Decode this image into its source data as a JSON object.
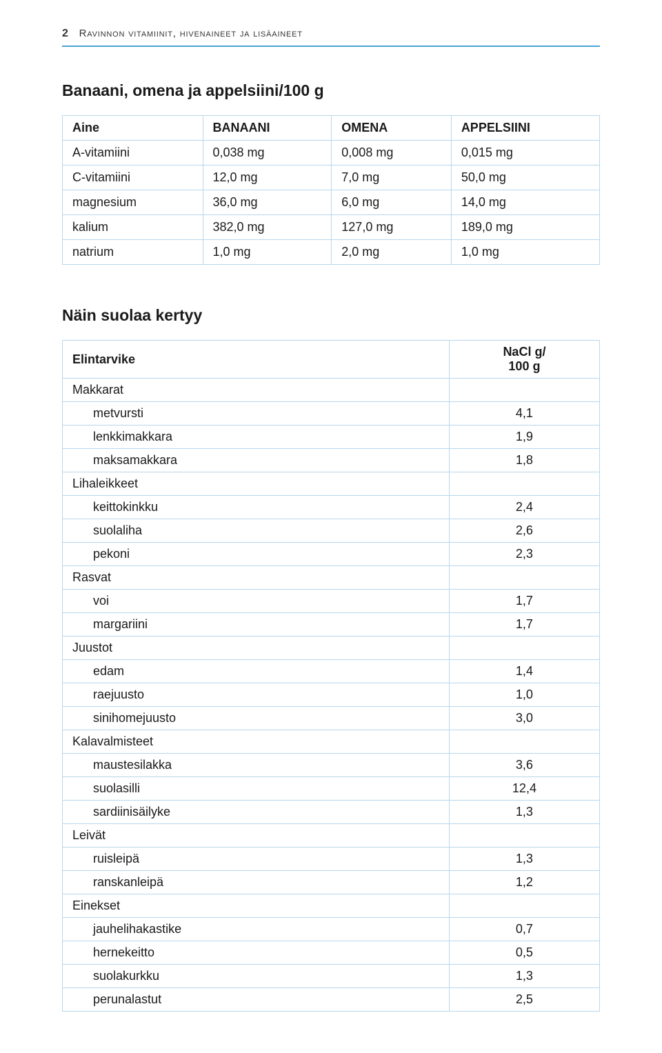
{
  "header": {
    "page_number": "2",
    "running_title": "Ravinnon vitamiinit, hivenaineet ja lisäaineet"
  },
  "colors": {
    "rule": "#4aa3d6",
    "grid": "#b7d7ec",
    "text": "#1a1a1a",
    "background": "#ffffff"
  },
  "table1": {
    "title": "Banaani, omena ja appelsiini/100 g",
    "headers": [
      "Aine",
      "BANAANI",
      "OMENA",
      "APPELSIINI"
    ],
    "rows": [
      [
        "A-vitamiini",
        "0,038 mg",
        "0,008 mg",
        "0,015 mg"
      ],
      [
        "C-vitamiini",
        "12,0 mg",
        "7,0 mg",
        "50,0 mg"
      ],
      [
        "magnesium",
        "36,0 mg",
        "6,0 mg",
        "14,0 mg"
      ],
      [
        "kalium",
        "382,0 mg",
        "127,0 mg",
        "189,0 mg"
      ],
      [
        "natrium",
        "1,0 mg",
        "2,0 mg",
        "1,0 mg"
      ]
    ]
  },
  "table2": {
    "title": "Näin suolaa kertyy",
    "headers": [
      "Elintarvike",
      "NaCl g/\n100 g"
    ],
    "groups": [
      {
        "name": "Makkarat",
        "items": [
          [
            "metvursti",
            "4,1"
          ],
          [
            "lenkkimakkara",
            "1,9"
          ],
          [
            "maksamakkara",
            "1,8"
          ]
        ]
      },
      {
        "name": "Lihaleikkeet",
        "items": [
          [
            "keittokinkku",
            "2,4"
          ],
          [
            "suolaliha",
            "2,6"
          ],
          [
            "pekoni",
            "2,3"
          ]
        ]
      },
      {
        "name": "Rasvat",
        "items": [
          [
            "voi",
            "1,7"
          ],
          [
            "margariini",
            "1,7"
          ]
        ]
      },
      {
        "name": "Juustot",
        "items": [
          [
            "edam",
            "1,4"
          ],
          [
            "raejuusto",
            "1,0"
          ],
          [
            "sinihomejuusto",
            "3,0"
          ]
        ]
      },
      {
        "name": "Kalavalmisteet",
        "items": [
          [
            "maustesilakka",
            "3,6"
          ],
          [
            "suolasilli",
            "12,4"
          ],
          [
            "sardiinisäilyke",
            "1,3"
          ]
        ]
      },
      {
        "name": "Leivät",
        "items": [
          [
            "ruisleipä",
            "1,3"
          ],
          [
            "ranskanleipä",
            "1,2"
          ]
        ]
      },
      {
        "name": "Einekset",
        "items": [
          [
            "jauhelihakastike",
            "0,7"
          ],
          [
            "hernekeitto",
            "0,5"
          ],
          [
            "suolakurkku",
            "1,3"
          ],
          [
            "perunalastut",
            "2,5"
          ]
        ]
      }
    ]
  }
}
